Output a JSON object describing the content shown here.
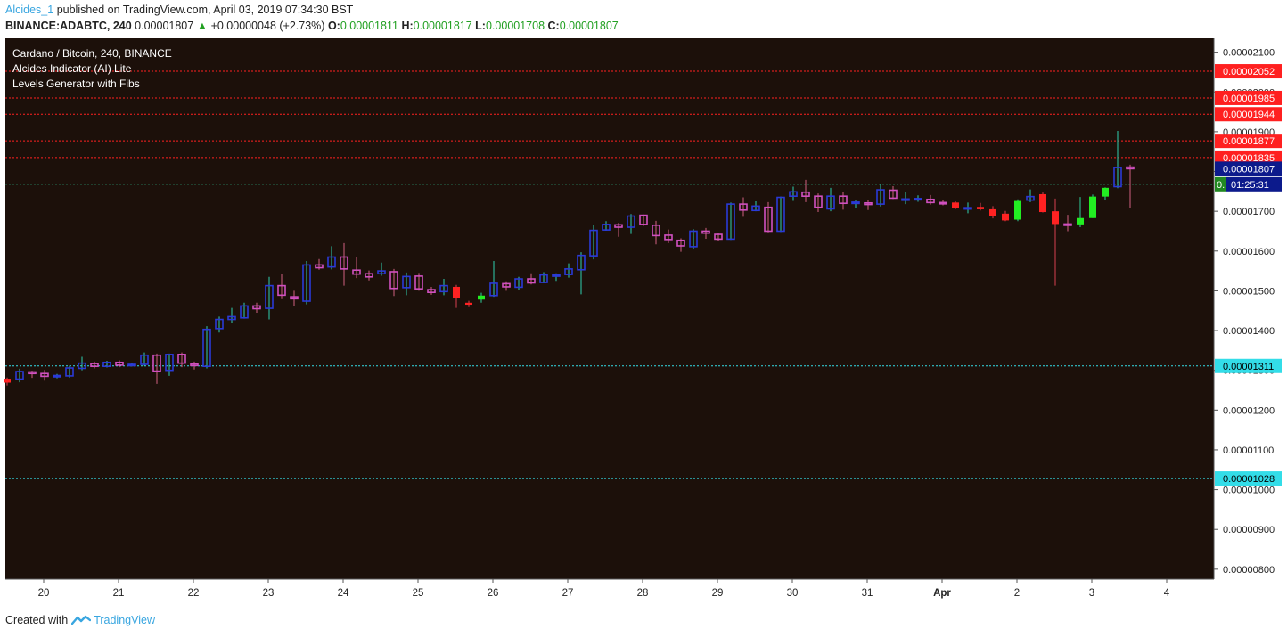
{
  "header": {
    "author": "Alcides_1",
    "published_text": "published on TradingView.com, April 03, 2019 07:34:30 BST",
    "symbol": "BINANCE:ADABTC, 240",
    "last": "0.00001807",
    "change": "+0.00000048 (+2.73%)",
    "o_label": "O:",
    "o": "0.00001811",
    "h_label": "H:",
    "h": "0.00001817",
    "l_label": "L:",
    "l": "0.00001708",
    "c_label": "C:",
    "c": "0.00001807"
  },
  "legend": [
    "Cardano / Bitcoin, 240, BINANCE",
    "Alcides Indicator (AI) Lite",
    "Levels Generator with Fibs"
  ],
  "footer": {
    "created_with": "Created with",
    "brand": "TradingView"
  },
  "colors": {
    "background": "#1c100a",
    "up_candle": "#2a3ad8",
    "down_candle": "#d050c0",
    "signal_up": "#22ee22",
    "signal_down": "#ff2222",
    "resistance": "#ff2020",
    "support": "#33dde8",
    "last_price_box": "#0c1a8c",
    "countdown_box": "#228822"
  },
  "chart_data": {
    "type": "candlestick",
    "ylim": [
      7.75e-06,
      2.135e-05
    ],
    "y_ticks": [
      "0.00002100",
      "0.00002000",
      "0.00001900",
      "0.00001800",
      "0.00001700",
      "0.00001600",
      "0.00001500",
      "0.00001400",
      "0.00001300",
      "0.00001200",
      "0.00001100",
      "0.00001000",
      "0.00000900",
      "0.00000800"
    ],
    "x_ticks": [
      {
        "label": "20",
        "day": 0
      },
      {
        "label": "21",
        "day": 1
      },
      {
        "label": "22",
        "day": 2
      },
      {
        "label": "23",
        "day": 3
      },
      {
        "label": "24",
        "day": 4
      },
      {
        "label": "25",
        "day": 5
      },
      {
        "label": "26",
        "day": 6
      },
      {
        "label": "27",
        "day": 7
      },
      {
        "label": "28",
        "day": 8
      },
      {
        "label": "29",
        "day": 9
      },
      {
        "label": "30",
        "day": 10
      },
      {
        "label": "31",
        "day": 11
      },
      {
        "label": "Apr",
        "day": 12
      },
      {
        "label": "2",
        "day": 13
      },
      {
        "label": "3",
        "day": 14
      },
      {
        "label": "4",
        "day": 15
      }
    ],
    "levels": [
      {
        "value": 2.052e-05,
        "label": "0.00002052",
        "kind": "resistance"
      },
      {
        "value": 1.985e-05,
        "label": "0.00001985",
        "kind": "resistance"
      },
      {
        "value": 1.944e-05,
        "label": "0.00001944",
        "kind": "resistance"
      },
      {
        "value": 1.877e-05,
        "label": "0.00001877",
        "kind": "resistance"
      },
      {
        "value": 1.835e-05,
        "label": "0.00001835",
        "kind": "resistance"
      },
      {
        "value": 1.311e-05,
        "label": "0.00001311",
        "kind": "support"
      },
      {
        "value": 1.028e-05,
        "label": "0.00001028",
        "kind": "support"
      }
    ],
    "pivot_line": 1.768e-05,
    "last_price": {
      "value": 1.807e-05,
      "label": "0.00001807"
    },
    "countdown": {
      "label": "01:25:31",
      "prefix": "0."
    },
    "candles": [
      [
        1279,
        1269,
        1282,
        1262,
        "su"
      ],
      [
        1278,
        1297,
        1304,
        1270,
        "u"
      ],
      [
        1296,
        1292,
        1299,
        1281,
        "d"
      ],
      [
        1292,
        1285,
        1301,
        1274,
        "d"
      ],
      [
        1284,
        1287,
        1291,
        1280,
        "u"
      ],
      [
        1286,
        1306,
        1312,
        1282,
        "u"
      ],
      [
        1305,
        1318,
        1334,
        1300,
        "u"
      ],
      [
        1317,
        1310,
        1322,
        1305,
        "d"
      ],
      [
        1310,
        1320,
        1324,
        1307,
        "u"
      ],
      [
        1320,
        1313,
        1325,
        1308,
        "d"
      ],
      [
        1313,
        1315,
        1319,
        1310,
        "u"
      ],
      [
        1315,
        1338,
        1345,
        1312,
        "u"
      ],
      [
        1338,
        1298,
        1342,
        1266,
        "d"
      ],
      [
        1300,
        1340,
        1342,
        1286,
        "u"
      ],
      [
        1340,
        1318,
        1345,
        1308,
        "d"
      ],
      [
        1316,
        1312,
        1322,
        1302,
        "u"
      ],
      [
        1310,
        1403,
        1411,
        1305,
        "u"
      ],
      [
        1405,
        1428,
        1435,
        1395,
        "u"
      ],
      [
        1428,
        1435,
        1457,
        1420,
        "u"
      ],
      [
        1432,
        1462,
        1470,
        1430,
        "u"
      ],
      [
        1462,
        1455,
        1470,
        1445,
        "d"
      ],
      [
        1456,
        1513,
        1535,
        1428,
        "u"
      ],
      [
        1513,
        1489,
        1543,
        1479,
        "d"
      ],
      [
        1485,
        1480,
        1500,
        1462,
        "d"
      ],
      [
        1474,
        1565,
        1575,
        1466,
        "u"
      ],
      [
        1565,
        1558,
        1580,
        1553,
        "d"
      ],
      [
        1560,
        1585,
        1612,
        1554,
        "u"
      ],
      [
        1585,
        1555,
        1620,
        1513,
        "d"
      ],
      [
        1552,
        1542,
        1585,
        1532,
        "d"
      ],
      [
        1543,
        1535,
        1551,
        1526,
        "d"
      ],
      [
        1543,
        1550,
        1571,
        1538,
        "u"
      ],
      [
        1548,
        1506,
        1555,
        1487,
        "d"
      ],
      [
        1508,
        1536,
        1546,
        1489,
        "u"
      ],
      [
        1537,
        1505,
        1545,
        1500,
        "d"
      ],
      [
        1503,
        1496,
        1510,
        1490,
        "d"
      ],
      [
        1498,
        1513,
        1530,
        1489,
        "u"
      ],
      [
        1510,
        1482,
        1515,
        1457,
        "sd"
      ],
      [
        1470,
        1465,
        1475,
        1459,
        "su"
      ],
      [
        1478,
        1488,
        1495,
        1470,
        "su"
      ],
      [
        1488,
        1519,
        1575,
        1485,
        "u"
      ],
      [
        1518,
        1510,
        1524,
        1500,
        "d"
      ],
      [
        1509,
        1530,
        1535,
        1502,
        "u"
      ],
      [
        1530,
        1520,
        1544,
        1516,
        "d"
      ],
      [
        1521,
        1540,
        1547,
        1519,
        "u"
      ],
      [
        1537,
        1540,
        1544,
        1525,
        "u"
      ],
      [
        1541,
        1555,
        1569,
        1533,
        "u"
      ],
      [
        1553,
        1589,
        1597,
        1491,
        "u"
      ],
      [
        1588,
        1652,
        1665,
        1579,
        "u"
      ],
      [
        1653,
        1667,
        1675,
        1651,
        "u"
      ],
      [
        1666,
        1660,
        1671,
        1636,
        "d"
      ],
      [
        1660,
        1688,
        1693,
        1643,
        "u"
      ],
      [
        1690,
        1667,
        1692,
        1663,
        "d"
      ],
      [
        1665,
        1639,
        1676,
        1617,
        "d"
      ],
      [
        1640,
        1629,
        1654,
        1620,
        "d"
      ],
      [
        1627,
        1613,
        1632,
        1598,
        "d"
      ],
      [
        1611,
        1650,
        1655,
        1605,
        "u"
      ],
      [
        1650,
        1645,
        1658,
        1631,
        "d"
      ],
      [
        1642,
        1630,
        1646,
        1625,
        "d"
      ],
      [
        1630,
        1718,
        1722,
        1628,
        "u"
      ],
      [
        1718,
        1703,
        1735,
        1686,
        "d"
      ],
      [
        1702,
        1713,
        1725,
        1700,
        "u"
      ],
      [
        1710,
        1650,
        1723,
        1647,
        "d"
      ],
      [
        1650,
        1735,
        1737,
        1648,
        "u"
      ],
      [
        1738,
        1749,
        1762,
        1726,
        "u"
      ],
      [
        1748,
        1738,
        1779,
        1723,
        "d"
      ],
      [
        1738,
        1710,
        1745,
        1698,
        "d"
      ],
      [
        1706,
        1738,
        1759,
        1700,
        "u"
      ],
      [
        1738,
        1720,
        1748,
        1704,
        "d"
      ],
      [
        1720,
        1723,
        1727,
        1708,
        "u"
      ],
      [
        1721,
        1717,
        1728,
        1703,
        "d"
      ],
      [
        1718,
        1754,
        1768,
        1712,
        "u"
      ],
      [
        1753,
        1733,
        1763,
        1731,
        "d"
      ],
      [
        1731,
        1731,
        1748,
        1718,
        "u"
      ],
      [
        1731,
        1732,
        1740,
        1724,
        "u"
      ],
      [
        1730,
        1722,
        1741,
        1717,
        "d"
      ],
      [
        1722,
        1721,
        1729,
        1715,
        "u"
      ],
      [
        1722,
        1707,
        1725,
        1705,
        "sd"
      ],
      [
        1709,
        1709,
        1722,
        1695,
        "u"
      ],
      [
        1711,
        1705,
        1721,
        1702,
        "sd"
      ],
      [
        1705,
        1688,
        1713,
        1682,
        "sd"
      ],
      [
        1694,
        1677,
        1701,
        1675,
        "sd"
      ],
      [
        1679,
        1726,
        1730,
        1675,
        "su"
      ],
      [
        1728,
        1737,
        1755,
        1723,
        "u"
      ],
      [
        1743,
        1698,
        1747,
        1697,
        "sd"
      ],
      [
        1700,
        1668,
        1732,
        1513,
        "sd"
      ],
      [
        1668,
        1667,
        1691,
        1650,
        "d"
      ],
      [
        1667,
        1683,
        1736,
        1660,
        "su"
      ],
      [
        1683,
        1737,
        1742,
        1683,
        "su"
      ],
      [
        1737,
        1759,
        1760,
        1728,
        "su"
      ],
      [
        1762,
        1810,
        1902,
        1758,
        "u"
      ],
      [
        1811,
        1807,
        1817,
        1708,
        "d"
      ]
    ]
  }
}
